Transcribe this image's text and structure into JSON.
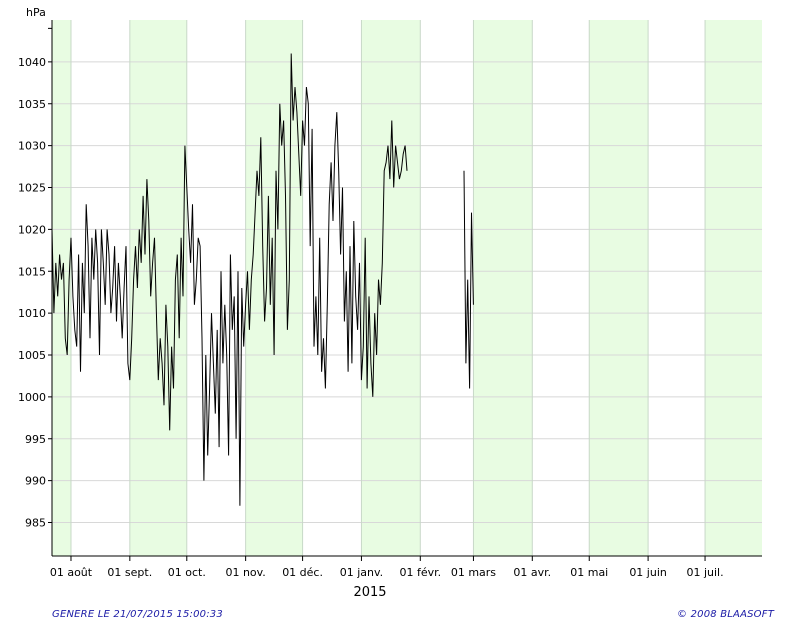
{
  "chart_data": {
    "type": "line",
    "ylabel": "hPa",
    "xlabel": "2015",
    "ylim": [
      981,
      1045
    ],
    "yticks": [
      985,
      990,
      995,
      1000,
      1005,
      1010,
      1015,
      1020,
      1025,
      1030,
      1035,
      1040
    ],
    "xlim": [
      "2014-07-22",
      "2015-07-31"
    ],
    "month_ticks": [
      {
        "date": "2014-08-01",
        "label": "01 août"
      },
      {
        "date": "2014-09-01",
        "label": "01 sept."
      },
      {
        "date": "2014-10-01",
        "label": "01 oct."
      },
      {
        "date": "2014-11-01",
        "label": "01 nov."
      },
      {
        "date": "2014-12-01",
        "label": "01 déc."
      },
      {
        "date": "2015-01-01",
        "label": "01 janv."
      },
      {
        "date": "2015-02-01",
        "label": "01 févr."
      },
      {
        "date": "2015-03-01",
        "label": "01 mars"
      },
      {
        "date": "2015-04-01",
        "label": "01 avr."
      },
      {
        "date": "2015-05-01",
        "label": "01 mai"
      },
      {
        "date": "2015-06-01",
        "label": "01 juin"
      },
      {
        "date": "2015-07-01",
        "label": "01 juil."
      }
    ],
    "shaded_months": [
      "2014-07",
      "2014-09",
      "2014-11",
      "2015-01",
      "2015-03",
      "2015-05",
      "2015-07"
    ],
    "band_color": "#e8fce2",
    "line_color": "#000000",
    "grid": true,
    "series": [
      {
        "x": [
          "2014-07-22",
          "2014-07-23",
          "2014-07-24",
          "2014-07-25",
          "2014-07-26",
          "2014-07-27",
          "2014-07-28",
          "2014-07-29",
          "2014-07-30",
          "2014-07-31",
          "2014-08-01",
          "2014-08-02",
          "2014-08-03",
          "2014-08-04",
          "2014-08-05",
          "2014-08-06",
          "2014-08-07",
          "2014-08-08",
          "2014-08-09",
          "2014-08-10",
          "2014-08-11",
          "2014-08-12",
          "2014-08-13",
          "2014-08-14",
          "2014-08-15",
          "2014-08-16",
          "2014-08-17",
          "2014-08-18",
          "2014-08-19",
          "2014-08-20",
          "2014-08-21",
          "2014-08-22",
          "2014-08-23",
          "2014-08-24",
          "2014-08-25",
          "2014-08-26",
          "2014-08-27",
          "2014-08-28",
          "2014-08-29",
          "2014-08-30",
          "2014-08-31",
          "2014-09-01",
          "2014-09-02",
          "2014-09-03",
          "2014-09-04",
          "2014-09-05",
          "2014-09-06",
          "2014-09-07",
          "2014-09-08",
          "2014-09-09",
          "2014-09-10",
          "2014-09-11",
          "2014-09-12",
          "2014-09-13",
          "2014-09-14",
          "2014-09-15",
          "2014-09-16",
          "2014-09-17",
          "2014-09-18",
          "2014-09-19",
          "2014-09-20",
          "2014-09-21",
          "2014-09-22",
          "2014-09-23",
          "2014-09-24",
          "2014-09-25",
          "2014-09-26",
          "2014-09-27",
          "2014-09-28",
          "2014-09-29",
          "2014-09-30",
          "2014-10-01",
          "2014-10-02",
          "2014-10-03",
          "2014-10-04",
          "2014-10-05",
          "2014-10-06",
          "2014-10-07",
          "2014-10-08",
          "2014-10-09",
          "2014-10-10",
          "2014-10-11",
          "2014-10-12",
          "2014-10-13",
          "2014-10-14",
          "2014-10-15",
          "2014-10-16",
          "2014-10-17",
          "2014-10-18",
          "2014-10-19",
          "2014-10-20",
          "2014-10-21",
          "2014-10-22",
          "2014-10-23",
          "2014-10-24",
          "2014-10-25",
          "2014-10-26",
          "2014-10-27",
          "2014-10-28",
          "2014-10-29",
          "2014-10-30",
          "2014-10-31",
          "2014-11-01",
          "2014-11-02",
          "2014-11-03",
          "2014-11-04",
          "2014-11-05",
          "2014-11-06",
          "2014-11-07",
          "2014-11-08",
          "2014-11-09",
          "2014-11-10",
          "2014-11-11",
          "2014-11-12",
          "2014-11-13",
          "2014-11-14",
          "2014-11-15",
          "2014-11-16",
          "2014-11-17",
          "2014-11-18",
          "2014-11-19",
          "2014-11-20",
          "2014-11-21",
          "2014-11-22",
          "2014-11-23",
          "2014-11-24",
          "2014-11-25",
          "2014-11-26",
          "2014-11-27",
          "2014-11-28",
          "2014-11-29",
          "2014-11-30",
          "2014-12-01",
          "2014-12-02",
          "2014-12-03",
          "2014-12-04",
          "2014-12-05",
          "2014-12-06",
          "2014-12-07",
          "2014-12-08",
          "2014-12-09",
          "2014-12-10",
          "2014-12-11",
          "2014-12-12",
          "2014-12-13",
          "2014-12-14",
          "2014-12-15",
          "2014-12-16",
          "2014-12-17",
          "2014-12-18",
          "2014-12-19",
          "2014-12-20",
          "2014-12-21",
          "2014-12-22",
          "2014-12-23",
          "2014-12-24",
          "2014-12-25",
          "2014-12-26",
          "2014-12-27",
          "2014-12-28",
          "2014-12-29",
          "2014-12-30",
          "2014-12-31",
          "2015-01-01",
          "2015-01-02",
          "2015-01-03",
          "2015-01-04",
          "2015-01-05",
          "2015-01-06",
          "2015-01-07",
          "2015-01-08",
          "2015-01-09",
          "2015-01-10",
          "2015-01-11",
          "2015-01-12",
          "2015-01-13",
          "2015-01-14",
          "2015-01-15",
          "2015-01-16",
          "2015-01-17",
          "2015-01-18",
          "2015-01-19",
          "2015-01-20",
          "2015-01-21",
          "2015-01-22",
          "2015-01-23",
          "2015-01-24",
          "2015-01-25"
        ],
        "values": [
          1020,
          1010,
          1016,
          1012,
          1017,
          1014,
          1016,
          1007,
          1005,
          1014,
          1019,
          1012,
          1008,
          1006,
          1017,
          1003,
          1016,
          1010,
          1023,
          1018,
          1007,
          1019,
          1014,
          1020,
          1016,
          1005,
          1020,
          1016,
          1011,
          1020,
          1017,
          1010,
          1013,
          1018,
          1009,
          1016,
          1012,
          1007,
          1013,
          1018,
          1004,
          1002,
          1007,
          1014,
          1018,
          1013,
          1020,
          1016,
          1024,
          1017,
          1026,
          1021,
          1012,
          1016,
          1019,
          1010,
          1002,
          1007,
          1004,
          999,
          1011,
          1006,
          996,
          1006,
          1001,
          1014,
          1017,
          1007,
          1019,
          1012,
          1030,
          1025,
          1020,
          1016,
          1023,
          1011,
          1014,
          1019,
          1018,
          1007,
          990,
          1005,
          993,
          1001,
          1010,
          1004,
          998,
          1008,
          994,
          1015,
          1004,
          1011,
          1005,
          993,
          1017,
          1008,
          1012,
          995,
          1015,
          987,
          1013,
          1006,
          1011,
          1015,
          1008,
          1014,
          1017,
          1022,
          1027,
          1024,
          1031,
          1018,
          1009,
          1013,
          1024,
          1011,
          1019,
          1005,
          1027,
          1020,
          1035,
          1030,
          1033,
          1024,
          1008,
          1014,
          1041,
          1033,
          1037,
          1034,
          1029,
          1024,
          1033,
          1030,
          1037,
          1035,
          1018,
          1032,
          1006,
          1012,
          1005,
          1019,
          1003,
          1007,
          1001,
          1011,
          1023,
          1028,
          1021,
          1030,
          1034,
          1027,
          1017,
          1025,
          1009,
          1015,
          1003,
          1018,
          1004,
          1021,
          1012,
          1008,
          1016,
          1002,
          1006,
          1019,
          1001,
          1012,
          1004,
          1000,
          1010,
          1005,
          1014,
          1011,
          1016,
          1027,
          1028,
          1030,
          1026,
          1033,
          1025,
          1030,
          1028,
          1026,
          1027,
          1029,
          1030,
          1027
        ],
        "style": "daily-range",
        "note_hidden": true
      }
    ]
  },
  "footer": {
    "left": "GENERE LE 21/07/2015 15:00:33",
    "right": "© 2008 BLAASOFT"
  }
}
